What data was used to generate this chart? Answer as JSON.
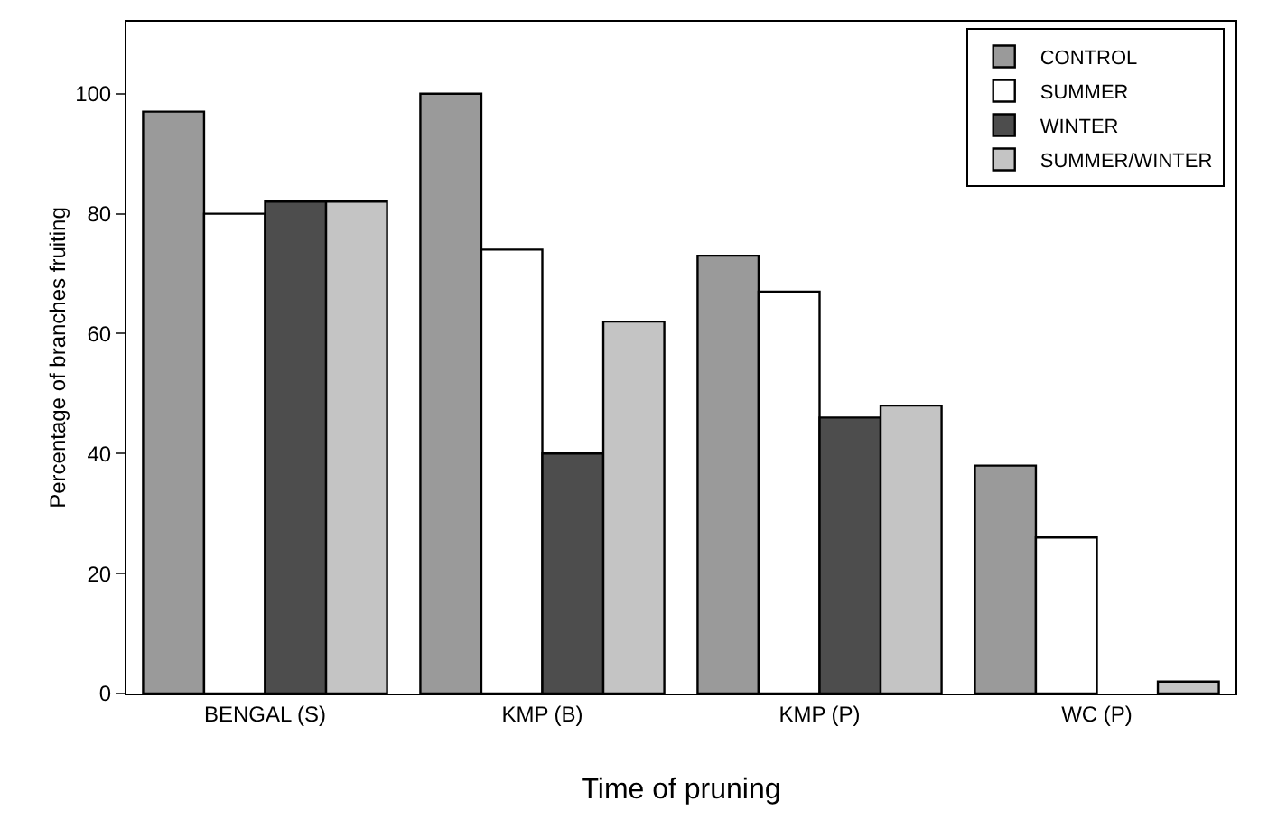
{
  "chart_data": {
    "type": "bar",
    "xlabel": "Time of pruning",
    "ylabel": "Percentage of branches fruiting",
    "categories": [
      "BENGAL (S)",
      "KMP (B)",
      "KMP (P)",
      "WC (P)"
    ],
    "series": [
      {
        "name": "CONTROL",
        "color": "#9a9a9a",
        "values": [
          97,
          100,
          73,
          38
        ]
      },
      {
        "name": "SUMMER",
        "color": "#ffffff",
        "values": [
          80,
          74,
          67,
          26
        ]
      },
      {
        "name": "WINTER",
        "color": "#4d4d4d",
        "values": [
          82,
          40,
          46,
          null
        ]
      },
      {
        "name": "SUMMER/WINTER",
        "color": "#c4c4c4",
        "values": [
          82,
          62,
          48,
          2
        ]
      }
    ],
    "ylim": [
      0,
      112
    ],
    "yticks": [
      0,
      20,
      40,
      60,
      80,
      100
    ],
    "grid": false,
    "legend": "top right"
  }
}
